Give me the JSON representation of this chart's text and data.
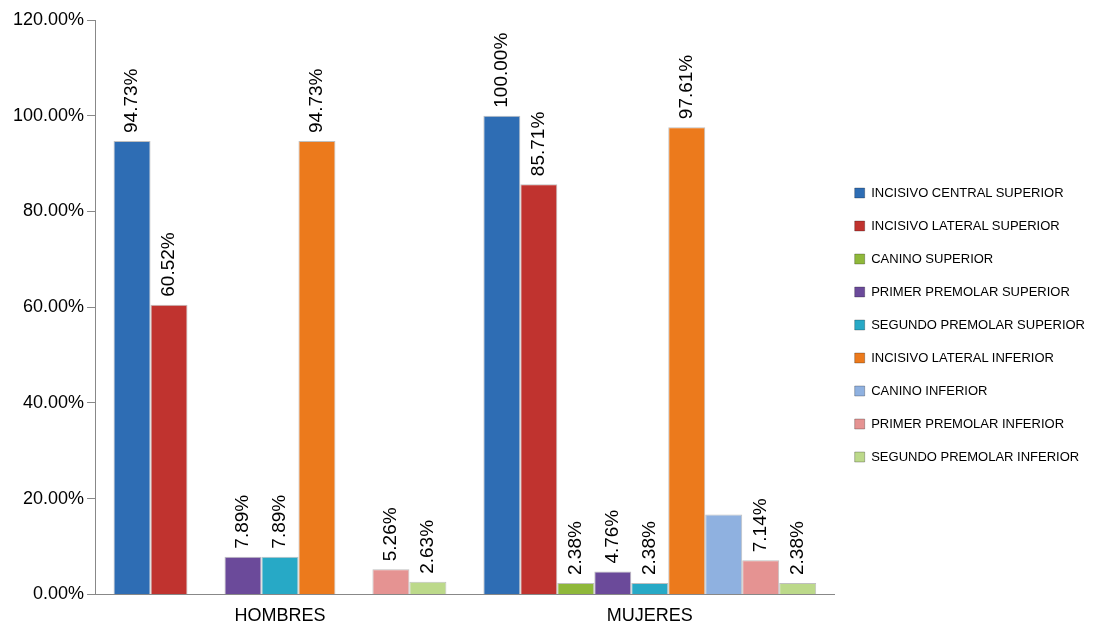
{
  "chart_data": {
    "type": "bar",
    "categories": [
      "HOMBRES",
      "MUJERES"
    ],
    "series": [
      {
        "name": "INCISIVO CENTRAL SUPERIOR",
        "color": "#2e6db4",
        "values": [
          94.73,
          100
        ],
        "value_labels": [
          "94.73%",
          "100.00%"
        ]
      },
      {
        "name": "INCISIVO LATERAL SUPERIOR",
        "color": "#c0332f",
        "values": [
          60.52,
          85.71
        ],
        "value_labels": [
          "60.52%",
          "85.71%"
        ]
      },
      {
        "name": "CANINO SUPERIOR",
        "color": "#8fb83a",
        "values": [
          null,
          2.38
        ],
        "value_labels": [
          null,
          "2.38%"
        ]
      },
      {
        "name": "PRIMER PREMOLAR SUPERIOR",
        "color": "#6b4a9a",
        "values": [
          7.89,
          4.76
        ],
        "value_labels": [
          "7.89%",
          "4.76%"
        ]
      },
      {
        "name": "SEGUNDO PREMOLAR SUPERIOR",
        "color": "#27a9c6",
        "values": [
          7.89,
          2.38
        ],
        "value_labels": [
          "7.89%",
          "2.38%"
        ]
      },
      {
        "name": "INCISIVO LATERAL INFERIOR",
        "color": "#ec7a1c",
        "values": [
          94.73,
          97.61
        ],
        "value_labels": [
          "94.73%",
          "97.61%"
        ]
      },
      {
        "name": "CANINO INFERIOR",
        "color": "#8fb1e0",
        "values": [
          null,
          16.7
        ],
        "value_labels": [
          null,
          null
        ]
      },
      {
        "name": "PRIMER PREMOLAR INFERIOR",
        "color": "#e59392",
        "values": [
          5.26,
          7.14
        ],
        "value_labels": [
          "5.26%",
          "7.14%"
        ]
      },
      {
        "name": "SEGUNDO PREMOLAR INFERIOR",
        "color": "#bcd98a",
        "values": [
          2.63,
          2.38
        ],
        "value_labels": [
          "2.63%",
          "2.38%"
        ]
      }
    ],
    "ylim": [
      0,
      120
    ],
    "yticks": [
      {
        "value": 0,
        "label": "0.00%"
      },
      {
        "value": 20,
        "label": "20.00%"
      },
      {
        "value": 40,
        "label": "40.00%"
      },
      {
        "value": 60,
        "label": "60.00%"
      },
      {
        "value": 80,
        "label": "80.00%"
      },
      {
        "value": 100,
        "label": "100.00%"
      },
      {
        "value": 120,
        "label": "120.00%"
      }
    ],
    "grid": false,
    "legend": "right"
  }
}
